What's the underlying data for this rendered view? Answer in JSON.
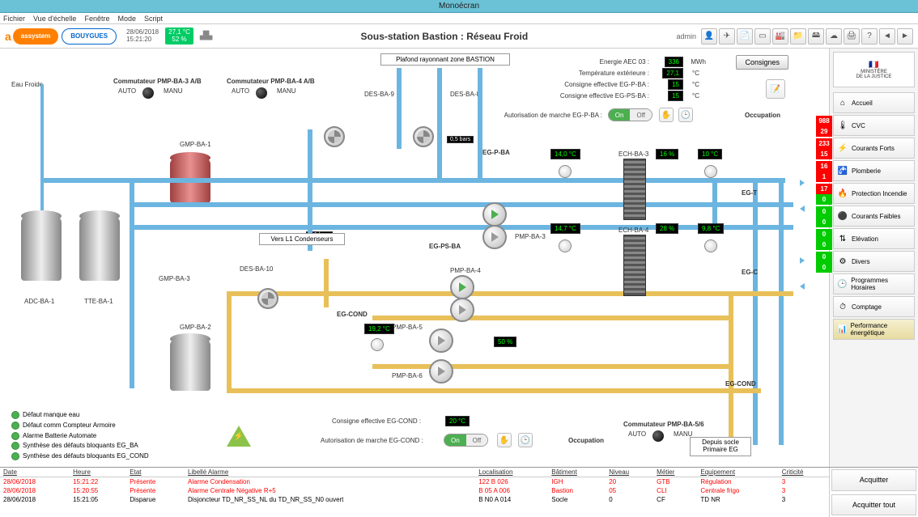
{
  "app_title": "Monoécran",
  "menu": [
    "Fichier",
    "Vue d'échelle",
    "Fenêtre",
    "Mode",
    "Script"
  ],
  "header": {
    "brand_pill1": "assystem",
    "brand_pill2": "BOUYGUES",
    "date": "28/06/2018",
    "time": "15:21:20",
    "outside_temp": "27,1 °C",
    "outside_hum": "52 %",
    "title": "Sous-station Bastion : Réseau Froid",
    "user": "admin"
  },
  "info_panel": {
    "energy_label": "Energie AEC 03 :",
    "energy_val": "336",
    "energy_unit": "MWh",
    "temp_ext_label": "Température extérieure :",
    "temp_ext_val": "27,1",
    "temp_ext_unit": "°C",
    "cons1_label": "Consigne effective EG-P-BA :",
    "cons1_val": "15",
    "cons1_unit": "°C",
    "cons2_label": "Consigne effective EG-PS-BA :",
    "cons2_val": "15",
    "cons2_unit": "°C",
    "auth_label": "Autorisation de marche EG-P-BA :",
    "on": "On",
    "off": "Off",
    "occupation": "Occupation",
    "consignes_btn": "Consignes"
  },
  "diagram": {
    "eau_froide": "Eau Froide",
    "comm_pmp34": "Commutateur PMP-BA-3 A/B",
    "comm_pmp4": "Commutateur PMP-BA-4 A/B",
    "auto": "AUTO",
    "manu": "MANU",
    "gmp_ba1": "GMP-BA-1",
    "adc_ba1": "ADC-BA-1",
    "tte_ba1": "TTE-BA-1",
    "plafond": "Plafond rayonnant zone BASTION",
    "des_ba9": "DES-BA-9",
    "des_ba8": "DES-BA-8",
    "bar1": "0,5 bars",
    "bar2": "0,1 bars",
    "eg_p_ba": "EG-P-BA",
    "eg_ps_ba": "EG-PS-BA",
    "pmp_ba3": "PMP-BA-3",
    "pmp_ba4": "PMP-BA-4",
    "pmp_ba5": "PMP-BA-5",
    "pmp_ba6": "PMP-BA-6",
    "ech_ba3": "ECH-BA-3",
    "ech_ba4": "ECH-BA-4",
    "eg_t": "EG-T",
    "eg_c": "EG-C",
    "eg_cond": "EG-COND",
    "eg_cond2": "EG-COND",
    "t1": "14,0 °C",
    "t2": "14,7 °C",
    "t3": "10 °C",
    "t4": "9,8 °C",
    "t5": "19,2 °C",
    "p1": "16 %",
    "p2": "28 %",
    "p3": "50 %",
    "vers_l1": "Vers L1 Condenseurs",
    "des_ba10": "DES-BA-10",
    "gmp_ba3": "GMP-BA-3",
    "gmp_ba2": "GMP-BA-2",
    "cons_cond_label": "Consigne effective EG-COND :",
    "cons_cond_val": "20 °C",
    "auth_cond_label": "Autorisation de marche EG-COND :",
    "comm_pmp56": "Commutateur PMP-BA-5/6",
    "depuis": "Depuis socle Primaire EG",
    "status": [
      "Défaut manque eau",
      "Défaut comm Compteur Armoire",
      "Alarme Batterie Automate",
      "Synthèse des défauts bloquants EG_BA",
      "Synthèse des défauts bloquants EG_COND"
    ]
  },
  "sidebar": {
    "gov1": "MINISTÈRE",
    "gov2": "DE LA JUSTICE",
    "items": [
      {
        "label": "Accueil",
        "badges": null
      },
      {
        "label": "CVC",
        "badges": [
          "988",
          "29"
        ],
        "bc": [
          "red",
          "red"
        ]
      },
      {
        "label": "Courants Forts",
        "badges": [
          "233",
          "15"
        ],
        "bc": [
          "red",
          "red"
        ]
      },
      {
        "label": "Plomberie",
        "badges": [
          "16",
          "1"
        ],
        "bc": [
          "red",
          "red"
        ]
      },
      {
        "label": "Protection Incendie",
        "badges": [
          "17",
          "0"
        ],
        "bc": [
          "red",
          "grn"
        ]
      },
      {
        "label": "Courants Faibles",
        "badges": [
          "0",
          "0"
        ],
        "bc": [
          "grn",
          "grn"
        ]
      },
      {
        "label": "Elévation",
        "badges": [
          "0",
          "0"
        ],
        "bc": [
          "grn",
          "grn"
        ]
      },
      {
        "label": "Divers",
        "badges": [
          "0",
          "0"
        ],
        "bc": [
          "grn",
          "grn"
        ]
      },
      {
        "label": "Programmes Horaires",
        "badges": null
      },
      {
        "label": "Comptage",
        "badges": null
      },
      {
        "label": "Performance énergétique",
        "badges": null,
        "active": true
      }
    ],
    "icons": [
      "⌂",
      "🌡",
      "⚡",
      "🚰",
      "🔥",
      "⚫",
      "⇅",
      "⚙",
      "🕒",
      "⏱",
      "📊"
    ]
  },
  "alarms": {
    "headers": [
      "Date",
      "Heure",
      "Etat",
      "Libellé Alarme",
      "Localisation",
      "Bâtiment",
      "Niveau",
      "Métier",
      "Equipement",
      "Criticité"
    ],
    "rows": [
      [
        "28/06/2018",
        "15:21:22",
        "Présente",
        "Alarme Condensation",
        "122 B 026",
        "IGH",
        "20",
        "GTB",
        "Régulation",
        "3"
      ],
      [
        "28/06/2018",
        "15:20:55",
        "Présente",
        "Alarme Centrale Négative R+5",
        "B 05 A 006",
        "Bastion",
        "05",
        "CLI",
        "Centrale frigo",
        "3"
      ],
      [
        "28/06/2018",
        "15:21:05",
        "Disparue",
        "Disjoncteur TD_NR_SS_NL du TD_NR_SS_N0 ouvert",
        "B N0 A 014",
        "Socle",
        "0",
        "CF",
        "TD NR",
        "3"
      ]
    ],
    "ack": "Acquitter",
    "ack_all": "Acquitter tout"
  }
}
